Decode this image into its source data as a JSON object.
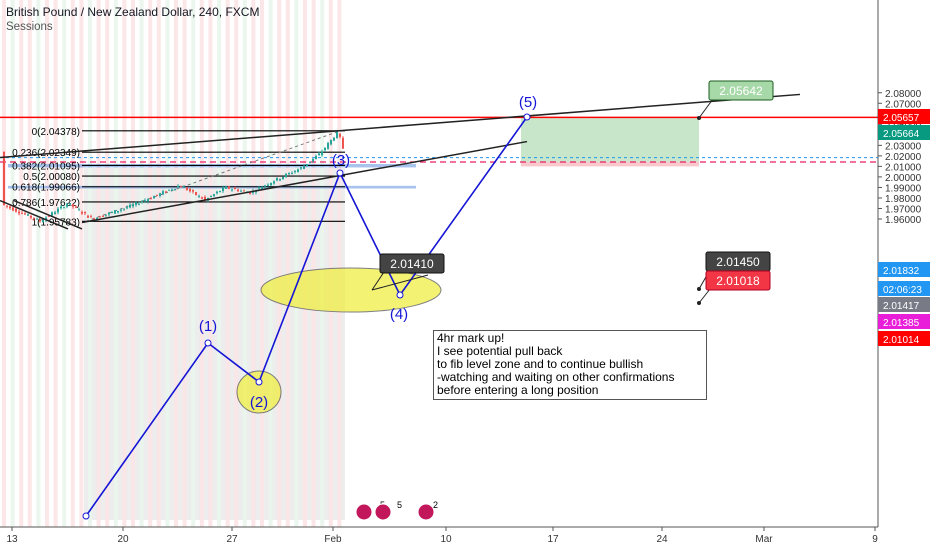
{
  "header": {
    "symbol": "British Pound / New Zealand Dollar, 240, FXCM",
    "study": "Sessions"
  },
  "note": "4hr mark up!\nI see potential pull back\nto fib level zone and to continue bullish\n-watching and waiting on other confirmations\nbefore entering a long position",
  "colors": {
    "wave": "#1515d6",
    "resistance": "#ff0000",
    "fib_zone": "#3c78d8",
    "target_zone": "#c8e6c9",
    "stop_zone": "#f8c8cc",
    "ellipse": "#f0ee44",
    "bull": "#26a69a",
    "bear": "#ef5350"
  },
  "chart_data": {
    "type": "candlestick",
    "title": "British Pound / New Zealand Dollar, 240, FXCM",
    "ylim": [
      1.9555,
      2.0865
    ],
    "y_ticks": [
      "2.08000",
      "2.07000",
      "2.06000",
      "2.05000",
      "2.04000",
      "2.03000",
      "2.02000",
      "2.01000",
      "2.00000",
      "1.99000",
      "1.98000",
      "1.97000",
      "1.96000"
    ],
    "x_ticks": [
      "13",
      "20",
      "27",
      "Feb",
      "10",
      "17",
      "24",
      "Mar",
      "9"
    ],
    "price_labels": [
      {
        "text": "2.05657",
        "value": 2.05657,
        "color": "#ff0000"
      },
      {
        "text": "2.05664",
        "value": 2.05664,
        "color": "#089981"
      },
      {
        "text": "2.01832",
        "value": 2.01832,
        "color": "#ffffff"
      },
      {
        "text": "02:06:23",
        "value": 2.0155,
        "color": "#ffffff"
      },
      {
        "text": "2.01417",
        "value": 2.01417,
        "color": "#ffffff"
      },
      {
        "text": "2.01385",
        "value": 2.01385,
        "color": "#e91ed9"
      },
      {
        "text": "2.01014",
        "value": 2.01014,
        "color": "#ff0000"
      }
    ],
    "fib_levels": [
      {
        "label": "0(2.04378)",
        "value": 2.04378
      },
      {
        "label": "0.236(2.02349)",
        "value": 2.02349
      },
      {
        "label": "0.382(2.01095)",
        "value": 2.01095
      },
      {
        "label": "0.5(2.00080)",
        "value": 2.0008
      },
      {
        "label": "0.618(1.99066)",
        "value": 1.99066
      },
      {
        "label": "0.786(1.97622)",
        "value": 1.97622
      },
      {
        "label": "1(1.95783)",
        "value": 1.95783
      }
    ],
    "callouts": [
      {
        "text": "2.05642",
        "theme": "green"
      },
      {
        "text": "2.01410",
        "theme": "dark"
      },
      {
        "text": "2.01450",
        "theme": "dark"
      },
      {
        "text": "2.01018",
        "theme": "red"
      }
    ],
    "waves": [
      "(1)",
      "(2)",
      "(3)",
      "(4)",
      "(5)"
    ],
    "events": [
      "5",
      "5",
      "2"
    ]
  }
}
